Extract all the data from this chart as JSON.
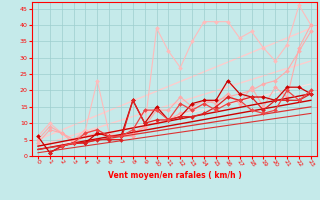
{
  "title": "",
  "xlabel": "Vent moyen/en rafales ( km/h )",
  "ylabel": "",
  "xlim": [
    -0.5,
    23.5
  ],
  "ylim": [
    0,
    47
  ],
  "yticks": [
    0,
    5,
    10,
    15,
    20,
    25,
    30,
    35,
    40,
    45
  ],
  "xticks": [
    0,
    1,
    2,
    3,
    4,
    5,
    6,
    7,
    8,
    9,
    10,
    11,
    12,
    13,
    14,
    15,
    16,
    17,
    18,
    19,
    20,
    21,
    22,
    23
  ],
  "bg_color": "#c5eaea",
  "grid_color": "#9ecece",
  "lines": [
    {
      "x": [
        0,
        1,
        2,
        3,
        4,
        5,
        6,
        7,
        8,
        9,
        10,
        11,
        12,
        13,
        14,
        15,
        16,
        17,
        18,
        19,
        20,
        21,
        22,
        23
      ],
      "y": [
        6,
        10,
        7,
        5,
        8,
        23,
        7,
        6,
        6,
        9,
        39,
        32,
        27,
        35,
        41,
        41,
        41,
        36,
        38,
        33,
        29,
        34,
        46,
        40
      ],
      "color": "#ffbbbb",
      "lw": 0.8,
      "marker": "D",
      "ms": 2.0,
      "zorder": 2
    },
    {
      "x": [
        0,
        1,
        2,
        3,
        4,
        5,
        6,
        7,
        8,
        9,
        10,
        11,
        12,
        13,
        14,
        15,
        16,
        17,
        18,
        19,
        20,
        21,
        22,
        23
      ],
      "y": [
        4,
        8,
        7,
        5,
        7,
        8,
        6,
        6,
        6,
        9,
        14,
        14,
        18,
        15,
        17,
        16,
        19,
        16,
        21,
        15,
        21,
        18,
        33,
        40
      ],
      "color": "#ffaaaa",
      "lw": 0.8,
      "marker": "D",
      "ms": 2.0,
      "zorder": 2
    },
    {
      "x": [
        0,
        1,
        2,
        3,
        4,
        5,
        6,
        7,
        8,
        9,
        10,
        11,
        12,
        13,
        14,
        15,
        16,
        17,
        18,
        19,
        20,
        21,
        22,
        23
      ],
      "y": [
        5,
        9,
        7,
        4,
        6,
        7,
        6,
        6,
        7,
        9,
        10,
        11,
        13,
        14,
        16,
        17,
        18,
        19,
        20,
        22,
        23,
        26,
        32,
        38
      ],
      "color": "#ffaaaa",
      "lw": 0.8,
      "marker": "D",
      "ms": 2.0,
      "zorder": 2
    },
    {
      "x": [
        0,
        23
      ],
      "y": [
        5,
        39
      ],
      "color": "#ffcccc",
      "lw": 1.0,
      "marker": null,
      "ms": 0,
      "zorder": 1
    },
    {
      "x": [
        0,
        23
      ],
      "y": [
        3,
        29
      ],
      "color": "#ffcccc",
      "lw": 1.0,
      "marker": null,
      "ms": 0,
      "zorder": 1
    },
    {
      "x": [
        0,
        23
      ],
      "y": [
        2,
        22
      ],
      "color": "#ffdddd",
      "lw": 0.8,
      "marker": null,
      "ms": 0,
      "zorder": 1
    },
    {
      "x": [
        0,
        1,
        2,
        3,
        4,
        5,
        6,
        7,
        8,
        9,
        10,
        11,
        12,
        13,
        14,
        15,
        16,
        17,
        18,
        19,
        20,
        21,
        22,
        23
      ],
      "y": [
        6,
        1,
        3,
        4,
        4,
        7,
        6,
        6,
        17,
        10,
        15,
        11,
        12,
        16,
        17,
        17,
        23,
        19,
        18,
        18,
        17,
        21,
        21,
        19
      ],
      "color": "#cc0000",
      "lw": 0.9,
      "marker": "D",
      "ms": 2.0,
      "zorder": 5
    },
    {
      "x": [
        0,
        23
      ],
      "y": [
        3,
        19
      ],
      "color": "#cc0000",
      "lw": 1.0,
      "marker": null,
      "ms": 0,
      "zorder": 4
    },
    {
      "x": [
        0,
        23
      ],
      "y": [
        2,
        17
      ],
      "color": "#cc0000",
      "lw": 1.0,
      "marker": null,
      "ms": 0,
      "zorder": 4
    },
    {
      "x": [
        0,
        23
      ],
      "y": [
        2,
        15
      ],
      "color": "#dd3333",
      "lw": 0.9,
      "marker": null,
      "ms": 0,
      "zorder": 4
    },
    {
      "x": [
        0,
        23
      ],
      "y": [
        1,
        13
      ],
      "color": "#dd3333",
      "lw": 0.8,
      "marker": null,
      "ms": 0,
      "zorder": 4
    },
    {
      "x": [
        1,
        2,
        3,
        4,
        5,
        6,
        7,
        8,
        9,
        10,
        11,
        12,
        13,
        14,
        15,
        16,
        17,
        18,
        19,
        20,
        21,
        22,
        23
      ],
      "y": [
        1,
        3,
        4,
        4,
        5,
        5,
        5,
        17,
        10,
        11,
        11,
        12,
        12,
        13,
        15,
        18,
        17,
        18,
        14,
        17,
        17,
        17,
        19
      ],
      "color": "#dd2222",
      "lw": 0.9,
      "marker": "D",
      "ms": 2.0,
      "zorder": 5
    },
    {
      "x": [
        2,
        3,
        4,
        5,
        6,
        7,
        8,
        9,
        10,
        11,
        12,
        13,
        14,
        15,
        16,
        17,
        18,
        19,
        20,
        21,
        22,
        23
      ],
      "y": [
        3,
        4,
        7,
        8,
        6,
        6,
        8,
        14,
        14,
        11,
        16,
        14,
        16,
        14,
        16,
        17,
        14,
        13,
        14,
        20,
        17,
        20
      ],
      "color": "#ee4444",
      "lw": 0.9,
      "marker": "D",
      "ms": 2.0,
      "zorder": 5
    }
  ]
}
